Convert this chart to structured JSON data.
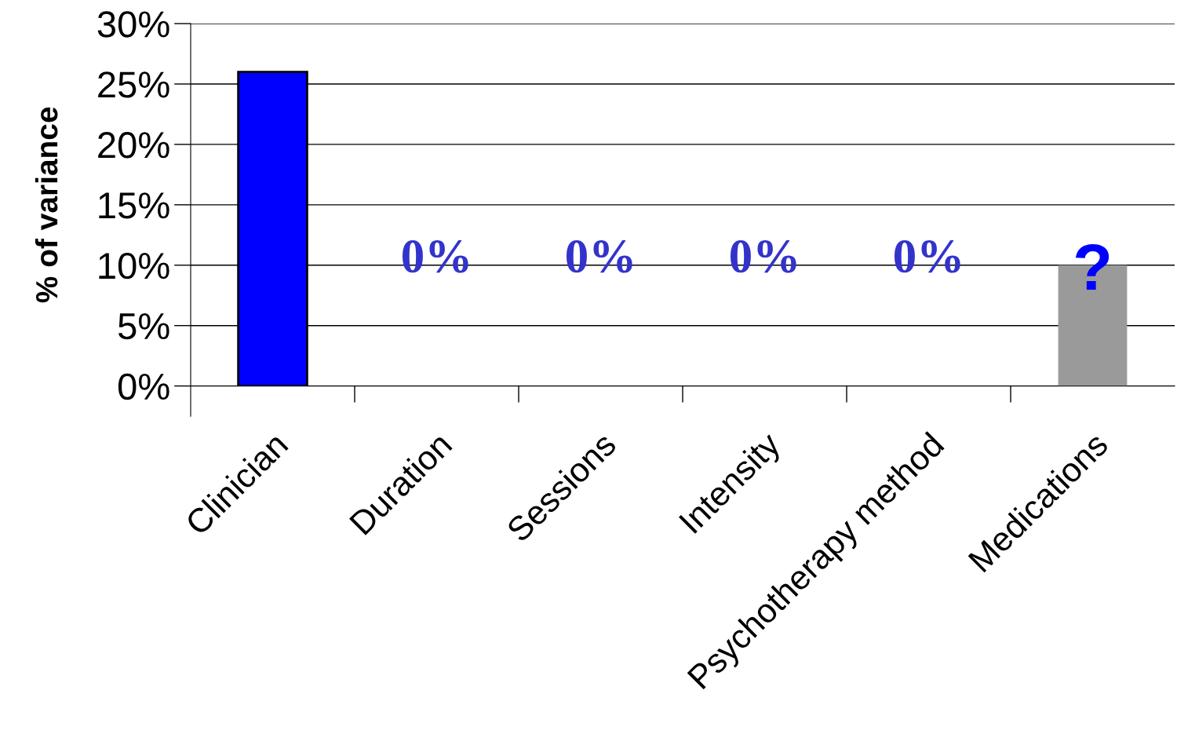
{
  "chart_data": {
    "type": "bar",
    "ylabel": "% of variance",
    "categories": [
      "Clinician",
      "Duration",
      "Sessions",
      "Intensity",
      "Psychotherapy method",
      "Medications"
    ],
    "values": [
      26,
      0,
      0,
      0,
      0,
      10
    ],
    "colors": [
      "#0000ff",
      "#0000ff",
      "#0000ff",
      "#0000ff",
      "#0000ff",
      "#9a9a9a"
    ],
    "value_labels": [
      null,
      "0%",
      "0%",
      "0%",
      "0%",
      "?"
    ],
    "ylim": [
      0,
      30
    ],
    "yticks": [
      {
        "value": 0,
        "label": "0%"
      },
      {
        "value": 5,
        "label": "5%"
      },
      {
        "value": 10,
        "label": "10%"
      },
      {
        "value": 15,
        "label": "15%"
      },
      {
        "value": 20,
        "label": "20%"
      },
      {
        "value": 25,
        "label": "25%"
      },
      {
        "value": 30,
        "label": "30%"
      }
    ],
    "grid": "y",
    "legend": false
  }
}
